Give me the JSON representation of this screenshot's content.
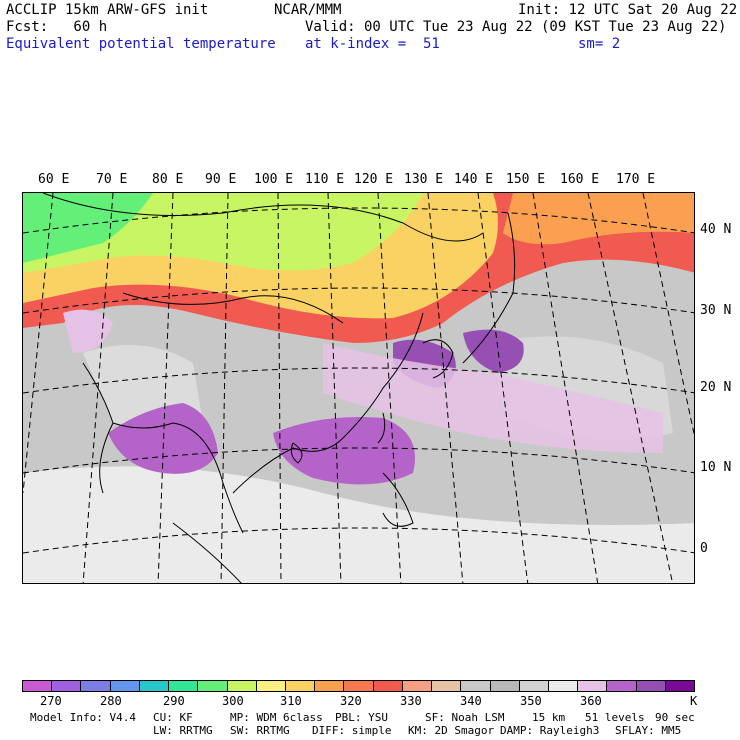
{
  "header": {
    "line1_left": "ACCLIP 15km ARW-GFS init",
    "line1_center": "NCAR/MMM",
    "line1_right": "Init: 12 UTC Sat 20 Aug 22",
    "line2_left": "Fcst:   60 h",
    "line2_right": "Valid: 00 UTC Tue 23 Aug 22 (09 KST Tue 23 Aug 22)",
    "line3_left": "Equivalent potential temperature",
    "line3_center": "at k-index =  51",
    "line3_right": "sm= 2"
  },
  "map": {
    "lon_labels": [
      "60 E",
      "70 E",
      "80 E",
      "90 E",
      "100 E",
      "110 E",
      "120 E",
      "130 E",
      "140 E",
      "150 E",
      "160 E",
      "170 E"
    ],
    "lat_labels": [
      "40 N",
      "30 N",
      "20 N",
      "10 N",
      "0"
    ]
  },
  "colorbar": {
    "colors": [
      "#c85ad2",
      "#a060e0",
      "#7d7de6",
      "#6496f0",
      "#28c8c8",
      "#32e696",
      "#64f078",
      "#c8f564",
      "#faf082",
      "#fad264",
      "#faa050",
      "#f57850",
      "#f05a50",
      "#f5a082",
      "#e6c3a5",
      "#c8c8c8",
      "#b9b9b9",
      "#d2d2d2",
      "#ebebeb",
      "#e6c3e6",
      "#b464c8",
      "#9650b4",
      "#780a96"
    ],
    "labels": [
      "270",
      "280",
      "290",
      "300",
      "310",
      "320",
      "330",
      "340",
      "350",
      "360",
      "K"
    ]
  },
  "footer": {
    "line1": [
      "Model Info: V4.4",
      "CU: KF",
      "MP: WDM 6class",
      "PBL: YSU",
      "SF: Noah LSM",
      "15 km",
      "51 levels",
      "90 sec"
    ],
    "line2": [
      "LW: RRTMG",
      "SW: RRTMG",
      "DIFF: simple",
      "KM: 2D Smagor",
      "DAMP: Rayleigh3",
      "SFLAY: MM5"
    ]
  }
}
